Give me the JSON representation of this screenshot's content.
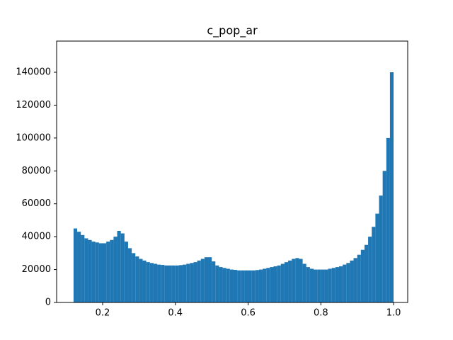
{
  "chart_data": {
    "type": "histogram",
    "title": "c_pop_ar",
    "bins": [
      0.12,
      0.13,
      0.14,
      0.15,
      0.16,
      0.17,
      0.18,
      0.19,
      0.2,
      0.21,
      0.22,
      0.23,
      0.24,
      0.25,
      0.26,
      0.27,
      0.28,
      0.29,
      0.3,
      0.31,
      0.32,
      0.33,
      0.34,
      0.35,
      0.36,
      0.37,
      0.38,
      0.39,
      0.4,
      0.41,
      0.42,
      0.43,
      0.44,
      0.45,
      0.46,
      0.47,
      0.48,
      0.49,
      0.5,
      0.51,
      0.52,
      0.53,
      0.54,
      0.55,
      0.56,
      0.57,
      0.58,
      0.59,
      0.6,
      0.61,
      0.62,
      0.63,
      0.64,
      0.65,
      0.66,
      0.67,
      0.68,
      0.69,
      0.7,
      0.71,
      0.72,
      0.73,
      0.74,
      0.75,
      0.76,
      0.77,
      0.78,
      0.79,
      0.8,
      0.81,
      0.82,
      0.83,
      0.84,
      0.85,
      0.86,
      0.87,
      0.88,
      0.89,
      0.9,
      0.91,
      0.92,
      0.93,
      0.94,
      0.95,
      0.96,
      0.97,
      0.98,
      0.99,
      1.0
    ],
    "counts": [
      45000,
      43000,
      41000,
      39000,
      38000,
      37000,
      36500,
      36000,
      36000,
      37000,
      38000,
      40000,
      43500,
      42000,
      37000,
      33000,
      30000,
      28000,
      26500,
      25500,
      24500,
      24000,
      23500,
      23000,
      22800,
      22500,
      22500,
      22500,
      22500,
      22700,
      23000,
      23500,
      24000,
      24500,
      25500,
      26500,
      27500,
      27500,
      25000,
      22500,
      21500,
      21000,
      20500,
      20000,
      19800,
      19500,
      19500,
      19500,
      19500,
      19500,
      19700,
      20000,
      20500,
      21000,
      21500,
      22000,
      22500,
      23500,
      24500,
      25500,
      26500,
      27000,
      26500,
      23500,
      21500,
      20500,
      20000,
      20000,
      20000,
      20000,
      20500,
      21000,
      21500,
      22000,
      23000,
      24000,
      25500,
      27000,
      29000,
      32000,
      35000,
      40000,
      46000,
      54000,
      65000,
      80000,
      100000,
      140000
    ],
    "color": "#1f77b4",
    "xlim": [
      0.0735,
      1.0388
    ],
    "xticks": [
      0.2,
      0.4,
      0.6,
      0.8,
      {
        "value": 1.0,
        "label": "1.0"
      }
    ],
    "ylim": [
      0,
      158950
    ],
    "yticks": [
      0,
      20000,
      40000,
      60000,
      80000,
      100000,
      120000,
      140000
    ]
  }
}
